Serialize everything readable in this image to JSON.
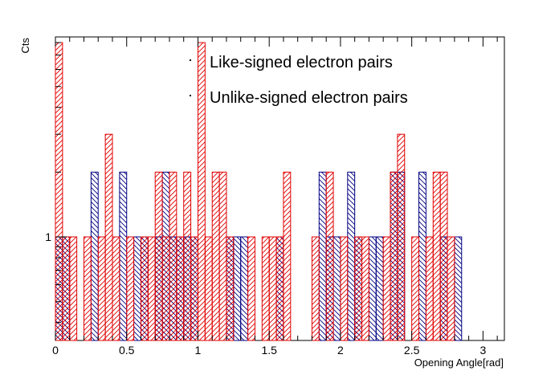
{
  "chart_data": {
    "type": "bar",
    "xlabel": "Opening Angle[rad]",
    "ylabel": "Cts",
    "xlim": [
      0,
      3.15
    ],
    "ylim": [
      0.33,
      8.5
    ],
    "log_y": true,
    "bin_width": 0.05,
    "x_ticks": [
      "0",
      "0.5",
      "1",
      "1.5",
      "2",
      "2.5",
      "3"
    ],
    "y_ticks": [
      "1"
    ],
    "legend": {
      "position": "top-center",
      "entries": [
        "Like-signed electron pairs",
        "Unlike-signed electron pairs"
      ]
    },
    "series": [
      {
        "name": "Like-signed electron pairs",
        "color": "#000080",
        "hatch": "backslash",
        "bins": [
          {
            "x": 0.0,
            "value": 1
          },
          {
            "x": 0.05,
            "value": 1
          },
          {
            "x": 0.25,
            "value": 2
          },
          {
            "x": 0.45,
            "value": 2
          },
          {
            "x": 0.55,
            "value": 1
          },
          {
            "x": 0.6,
            "value": 1
          },
          {
            "x": 0.7,
            "value": 1
          },
          {
            "x": 0.75,
            "value": 2
          },
          {
            "x": 0.8,
            "value": 1
          },
          {
            "x": 0.85,
            "value": 1
          },
          {
            "x": 0.9,
            "value": 1
          },
          {
            "x": 0.95,
            "value": 1
          },
          {
            "x": 1.2,
            "value": 1
          },
          {
            "x": 1.25,
            "value": 1
          },
          {
            "x": 1.3,
            "value": 1
          },
          {
            "x": 1.55,
            "value": 1
          },
          {
            "x": 1.85,
            "value": 2
          },
          {
            "x": 1.9,
            "value": 1
          },
          {
            "x": 1.95,
            "value": 1
          },
          {
            "x": 2.05,
            "value": 2
          },
          {
            "x": 2.1,
            "value": 1
          },
          {
            "x": 2.2,
            "value": 1
          },
          {
            "x": 2.25,
            "value": 1
          },
          {
            "x": 2.35,
            "value": 2
          },
          {
            "x": 2.4,
            "value": 2
          },
          {
            "x": 2.55,
            "value": 2
          },
          {
            "x": 2.7,
            "value": 1
          },
          {
            "x": 2.8,
            "value": 1
          }
        ]
      },
      {
        "name": "Unlike-signed electron pairs",
        "color": "#e00000",
        "hatch": "slash",
        "bins": [
          {
            "x": 0.0,
            "value": 8
          },
          {
            "x": 0.05,
            "value": 1
          },
          {
            "x": 0.1,
            "value": 1
          },
          {
            "x": 0.2,
            "value": 1
          },
          {
            "x": 0.3,
            "value": 1
          },
          {
            "x": 0.35,
            "value": 3
          },
          {
            "x": 0.4,
            "value": 1
          },
          {
            "x": 0.5,
            "value": 1
          },
          {
            "x": 0.6,
            "value": 1
          },
          {
            "x": 0.65,
            "value": 1
          },
          {
            "x": 0.7,
            "value": 2
          },
          {
            "x": 0.75,
            "value": 1
          },
          {
            "x": 0.8,
            "value": 2
          },
          {
            "x": 0.85,
            "value": 1
          },
          {
            "x": 0.9,
            "value": 2
          },
          {
            "x": 0.95,
            "value": 1
          },
          {
            "x": 1.0,
            "value": 8
          },
          {
            "x": 1.05,
            "value": 1
          },
          {
            "x": 1.1,
            "value": 2
          },
          {
            "x": 1.15,
            "value": 2
          },
          {
            "x": 1.2,
            "value": 1
          },
          {
            "x": 1.35,
            "value": 1
          },
          {
            "x": 1.45,
            "value": 1
          },
          {
            "x": 1.5,
            "value": 1
          },
          {
            "x": 1.55,
            "value": 1
          },
          {
            "x": 1.6,
            "value": 2
          },
          {
            "x": 1.8,
            "value": 1
          },
          {
            "x": 1.9,
            "value": 2
          },
          {
            "x": 2.0,
            "value": 1
          },
          {
            "x": 2.1,
            "value": 1
          },
          {
            "x": 2.15,
            "value": 1
          },
          {
            "x": 2.3,
            "value": 1
          },
          {
            "x": 2.35,
            "value": 2
          },
          {
            "x": 2.4,
            "value": 3
          },
          {
            "x": 2.5,
            "value": 1
          },
          {
            "x": 2.6,
            "value": 1
          },
          {
            "x": 2.65,
            "value": 2
          },
          {
            "x": 2.7,
            "value": 2
          },
          {
            "x": 2.75,
            "value": 1
          }
        ]
      }
    ]
  }
}
